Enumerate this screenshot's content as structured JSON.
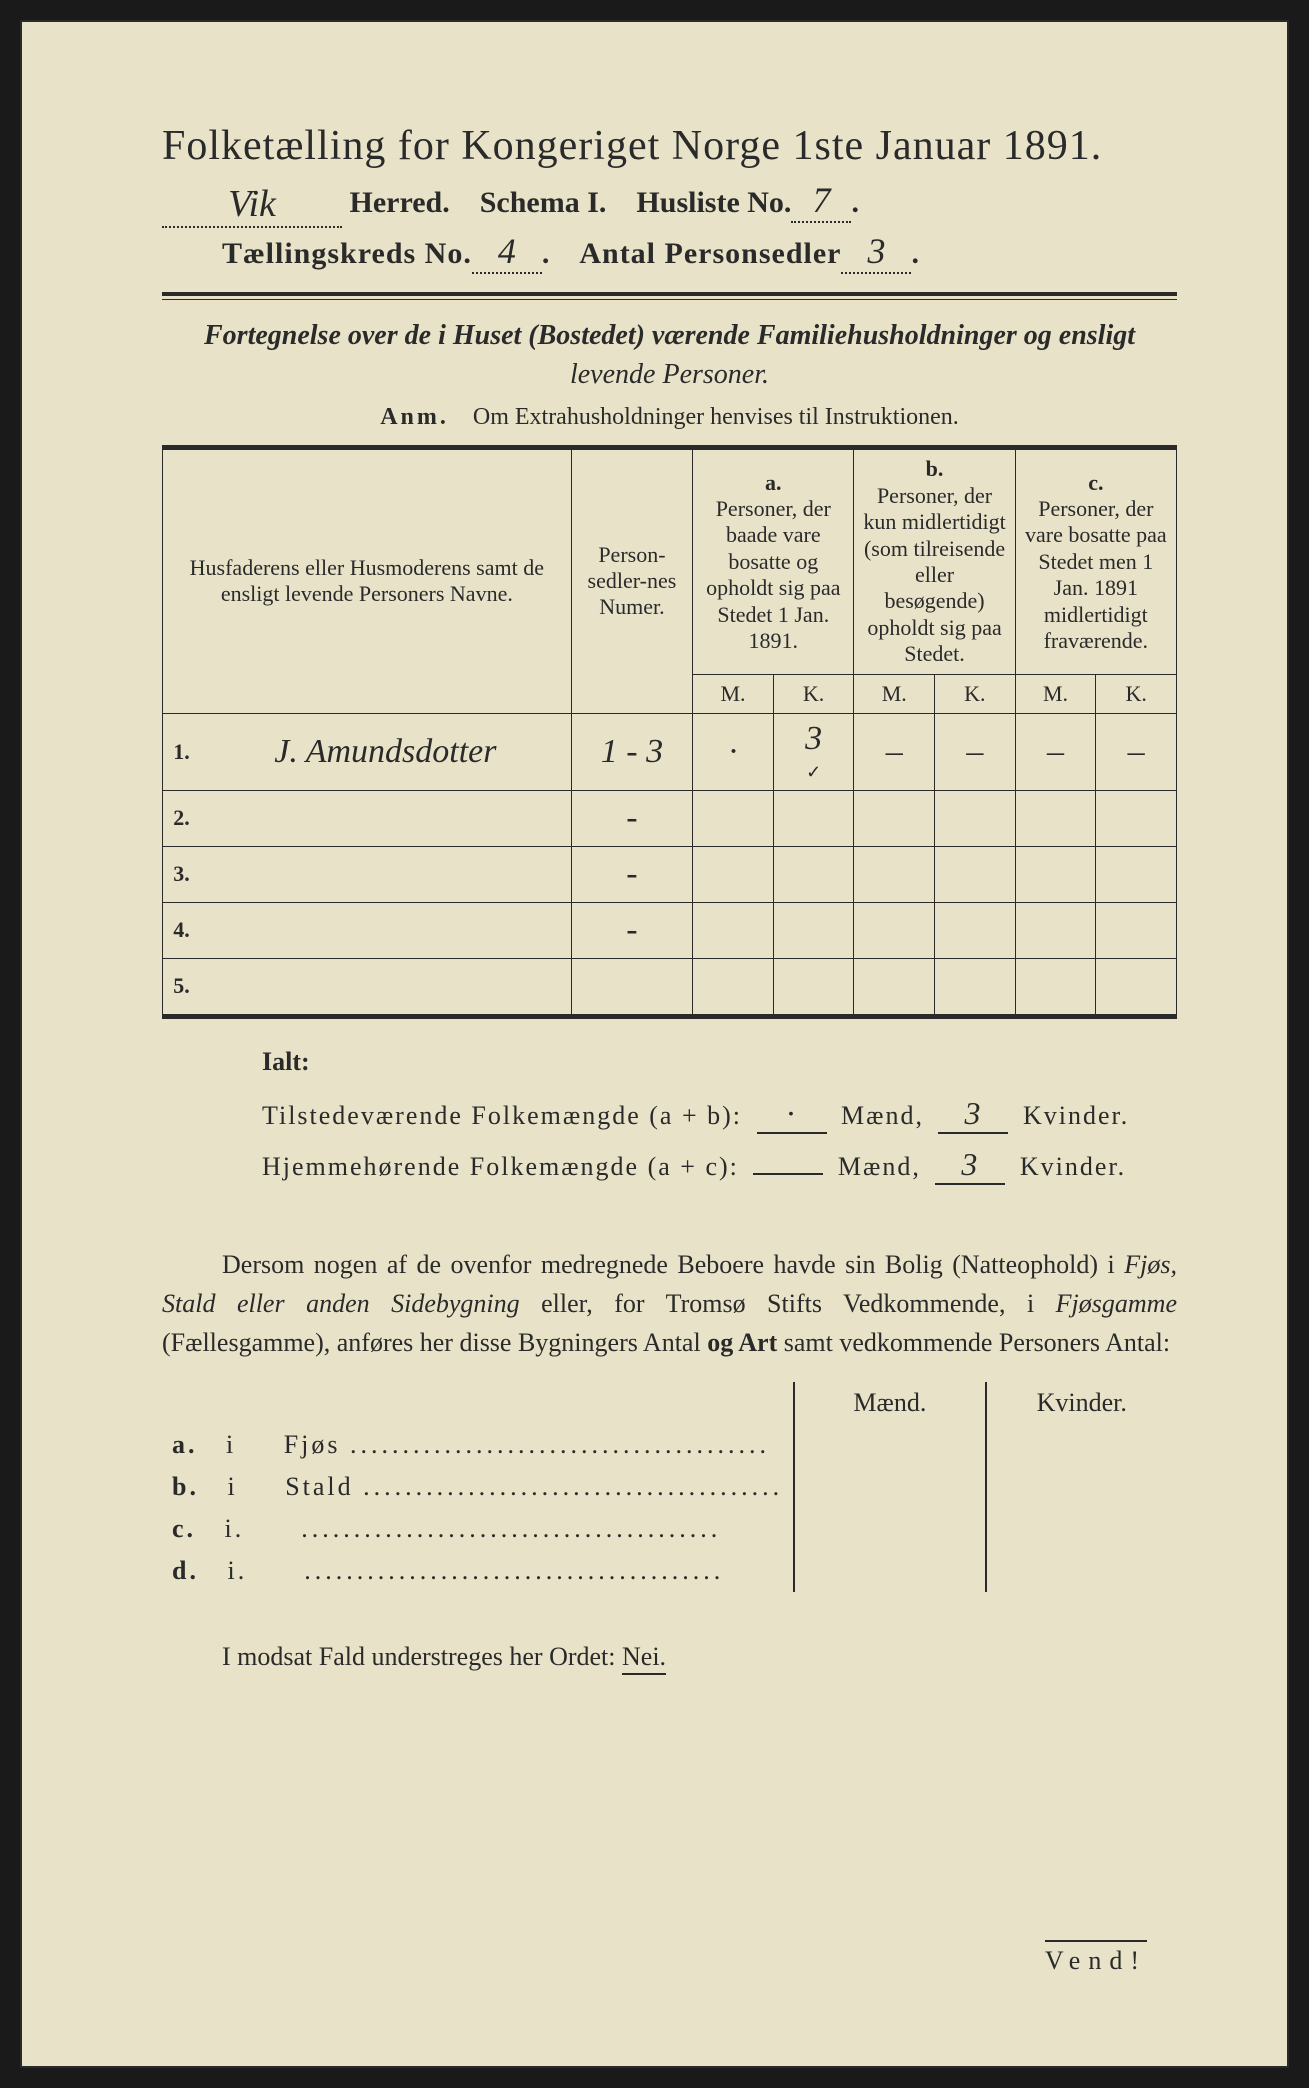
{
  "title": "Folketælling for Kongeriget Norge 1ste Januar 1891.",
  "header": {
    "herred_value": "Vik",
    "herred_label": "Herred.",
    "schema_label": "Schema I.",
    "husliste_label": "Husliste No.",
    "husliste_value": "7",
    "kreds_label": "Tællingskreds No.",
    "kreds_value": "4",
    "personsedler_label": "Antal Personsedler",
    "personsedler_value": "3"
  },
  "subtitle_line1": "Fortegnelse over de i Huset (Bostedet) værende Familiehusholdninger og ensligt",
  "subtitle_line2": "levende Personer.",
  "anm_prefix": "Anm.",
  "anm_text": "Om Extrahusholdninger henvises til Instruktionen.",
  "table": {
    "col_name": "Husfaderens eller Husmoderens samt de ensligt levende Personers Navne.",
    "col_num": "Person-sedler-nes Numer.",
    "col_a_label": "a.",
    "col_a_text": "Personer, der baade vare bosatte og opholdt sig paa Stedet 1 Jan. 1891.",
    "col_b_label": "b.",
    "col_b_text": "Personer, der kun midlertidigt (som tilreisende eller besøgende) opholdt sig paa Stedet.",
    "col_c_label": "c.",
    "col_c_text": "Personer, der vare bosatte paa Stedet men 1 Jan. 1891 midlertidigt fraværende.",
    "m_label": "M.",
    "k_label": "K.",
    "rows": [
      {
        "n": "1.",
        "name": "J. Amundsdotter",
        "num": "1 - 3",
        "a_m": "·",
        "a_k": "3",
        "a_k_tick": "✓",
        "b_m": "–",
        "b_k": "–",
        "c_m": "–",
        "c_k": "–"
      },
      {
        "n": "2.",
        "name": "",
        "num": "-",
        "a_m": "",
        "a_k": "",
        "b_m": "",
        "b_k": "",
        "c_m": "",
        "c_k": ""
      },
      {
        "n": "3.",
        "name": "",
        "num": "-",
        "a_m": "",
        "a_k": "",
        "b_m": "",
        "b_k": "",
        "c_m": "",
        "c_k": ""
      },
      {
        "n": "4.",
        "name": "",
        "num": "-",
        "a_m": "",
        "a_k": "",
        "b_m": "",
        "b_k": "",
        "c_m": "",
        "c_k": ""
      },
      {
        "n": "5.",
        "name": "",
        "num": "",
        "a_m": "",
        "a_k": "",
        "b_m": "",
        "b_k": "",
        "c_m": "",
        "c_k": ""
      }
    ]
  },
  "ialt": {
    "title": "Ialt:",
    "line1_label": "Tilstedeværende Folkemængde (a + b):",
    "line1_m": "·",
    "line1_k": "3",
    "line2_label": "Hjemmehørende Folkemængde (a + c):",
    "line2_m": "",
    "line2_k": "3",
    "maend": "Mænd,",
    "kvinder": "Kvinder."
  },
  "paragraph": "Dersom nogen af de ovenfor medregnede Beboere havde sin Bolig (Natteophold) i Fjøs, Stald eller anden Sidebygning eller, for Tromsø Stifts Vedkommende, i Fjøsgamme (Fællesgamme), anføres her disse Bygningers Antal og Art samt vedkommende Personers Antal:",
  "mk": {
    "maend": "Mænd.",
    "kvinder": "Kvinder.",
    "rows": [
      {
        "l": "a.",
        "i": "i",
        "t": "Fjøs"
      },
      {
        "l": "b.",
        "i": "i",
        "t": "Stald"
      },
      {
        "l": "c.",
        "i": "i.",
        "t": ""
      },
      {
        "l": "d.",
        "i": "i.",
        "t": ""
      }
    ]
  },
  "nei_line_prefix": "I modsat Fald understreges her Ordet:",
  "nei_word": "Nei.",
  "vend": "Vend!",
  "colors": {
    "paper": "#e8e3c8",
    "ink": "#2a2a2a",
    "border": "#1a1a1a"
  }
}
